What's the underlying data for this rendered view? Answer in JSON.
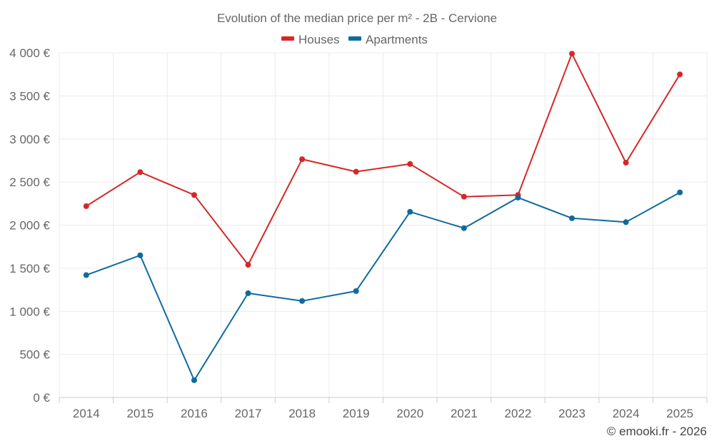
{
  "chart_data": {
    "type": "line",
    "title": "Evolution of the median price per m² - 2B - Cervione",
    "xlabel": "",
    "ylabel": "",
    "categories": [
      "2014",
      "2015",
      "2016",
      "2017",
      "2018",
      "2019",
      "2020",
      "2021",
      "2022",
      "2023",
      "2024",
      "2025"
    ],
    "ylim": [
      0,
      4000
    ],
    "yticks": [
      0,
      500,
      1000,
      1500,
      2000,
      2500,
      3000,
      3500,
      4000
    ],
    "ytick_labels": [
      "0 €",
      "500 €",
      "1 000 €",
      "1 500 €",
      "2 000 €",
      "2 500 €",
      "3 000 €",
      "3 500 €",
      "4 000 €"
    ],
    "grid": true,
    "legend_position": "top-center",
    "series": [
      {
        "name": "Houses",
        "color": "#d62728",
        "values": [
          2220,
          2615,
          2350,
          1540,
          2765,
          2620,
          2710,
          2330,
          2350,
          3990,
          2725,
          3750
        ]
      },
      {
        "name": "Apartments",
        "color": "#0f6aa0",
        "values": [
          1420,
          1650,
          200,
          1210,
          1120,
          1235,
          2155,
          1965,
          2320,
          2080,
          2035,
          2380
        ]
      }
    ]
  },
  "credit": "© emooki.fr - 2026"
}
